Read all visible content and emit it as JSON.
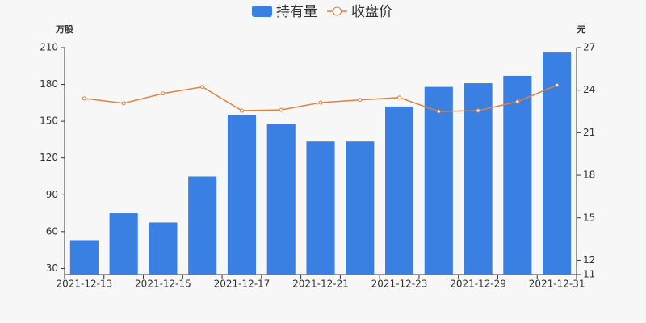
{
  "chart_data": {
    "type": "bar-line",
    "y_label": "万股",
    "y2_label": "元",
    "categories": [
      "2021-12-13",
      null,
      "2021-12-15",
      null,
      "2021-12-17",
      null,
      "2021-12-21",
      null,
      "2021-12-23",
      null,
      "2021-12-29",
      null,
      "2021-12-31"
    ],
    "series": [
      {
        "name": "持有量",
        "type": "bar",
        "color": "#3a80e2",
        "values": [
          53,
          75,
          67.5,
          105,
          155,
          148,
          133.5,
          133.5,
          162,
          178,
          181,
          187,
          206
        ]
      },
      {
        "name": "收盘价",
        "type": "line",
        "axis": "y2",
        "color": "#e6803a",
        "values": [
          23.42,
          23.08,
          23.77,
          24.23,
          22.56,
          22.61,
          23.13,
          23.31,
          23.48,
          22.5,
          22.56,
          23.19,
          24.35
        ]
      }
    ],
    "ylim": [
      25,
      210
    ],
    "yticks": [
      30,
      60,
      90,
      120,
      150,
      180,
      210
    ],
    "y2lim": [
      11,
      27
    ],
    "y2ticks": [
      11,
      12,
      15,
      18,
      21,
      24,
      27
    ],
    "grid": false
  }
}
